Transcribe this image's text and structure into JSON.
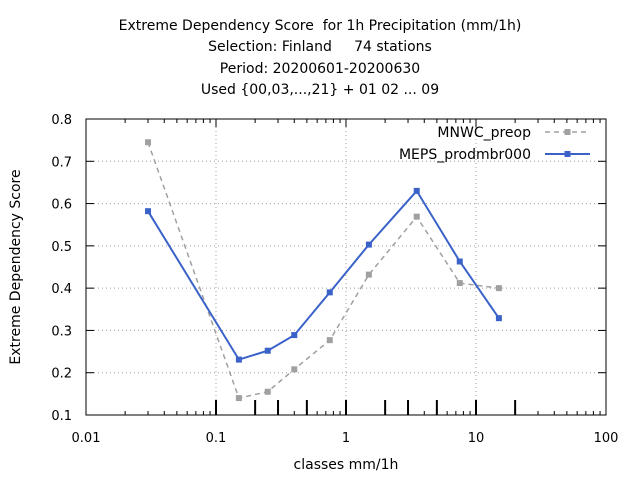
{
  "chart_data": {
    "type": "line",
    "title_lines": [
      "Extreme Dependency Score  for 1h Precipitation (mm/1h)",
      "Selection: Finland     74 stations",
      "Period: 20200601-20200630",
      "Used {00,03,...,21} + 01 02 ... 09"
    ],
    "xlabel": "classes mm/1h",
    "ylabel": "Extreme Dependency Score",
    "x_scale": "log",
    "xlim": [
      0.01,
      100
    ],
    "ylim": [
      0.1,
      0.8
    ],
    "x_tick_labels": [
      "0.01",
      "0.1",
      "1",
      "10",
      "100"
    ],
    "x_tick_values": [
      0.01,
      0.1,
      1,
      10,
      100
    ],
    "y_tick_labels": [
      "0.1",
      "0.2",
      "0.3",
      "0.4",
      "0.5",
      "0.6",
      "0.7",
      "0.8"
    ],
    "y_tick_values": [
      0.1,
      0.2,
      0.3,
      0.4,
      0.5,
      0.6,
      0.7,
      0.8
    ],
    "class_markers_x": [
      0.1,
      0.2,
      0.3,
      0.5,
      1,
      2,
      3,
      5,
      10,
      20
    ],
    "grid": true,
    "legend_position": "top-right",
    "series": [
      {
        "name": "MNWC_preop",
        "color": "#a0a0a0",
        "dash": true,
        "x": [
          0.03,
          0.15,
          0.25,
          0.4,
          0.75,
          1.5,
          3.5,
          7.5,
          15
        ],
        "y": [
          0.745,
          0.14,
          0.155,
          0.208,
          0.277,
          0.432,
          0.569,
          0.412,
          0.4
        ]
      },
      {
        "name": "MEPS_prodmbr000",
        "color": "#3a62c8",
        "dash": false,
        "x": [
          0.03,
          0.15,
          0.25,
          0.4,
          0.75,
          1.5,
          3.5,
          7.5,
          15
        ],
        "y": [
          0.582,
          0.231,
          0.252,
          0.289,
          0.39,
          0.503,
          0.63,
          0.463,
          0.329
        ]
      }
    ]
  }
}
